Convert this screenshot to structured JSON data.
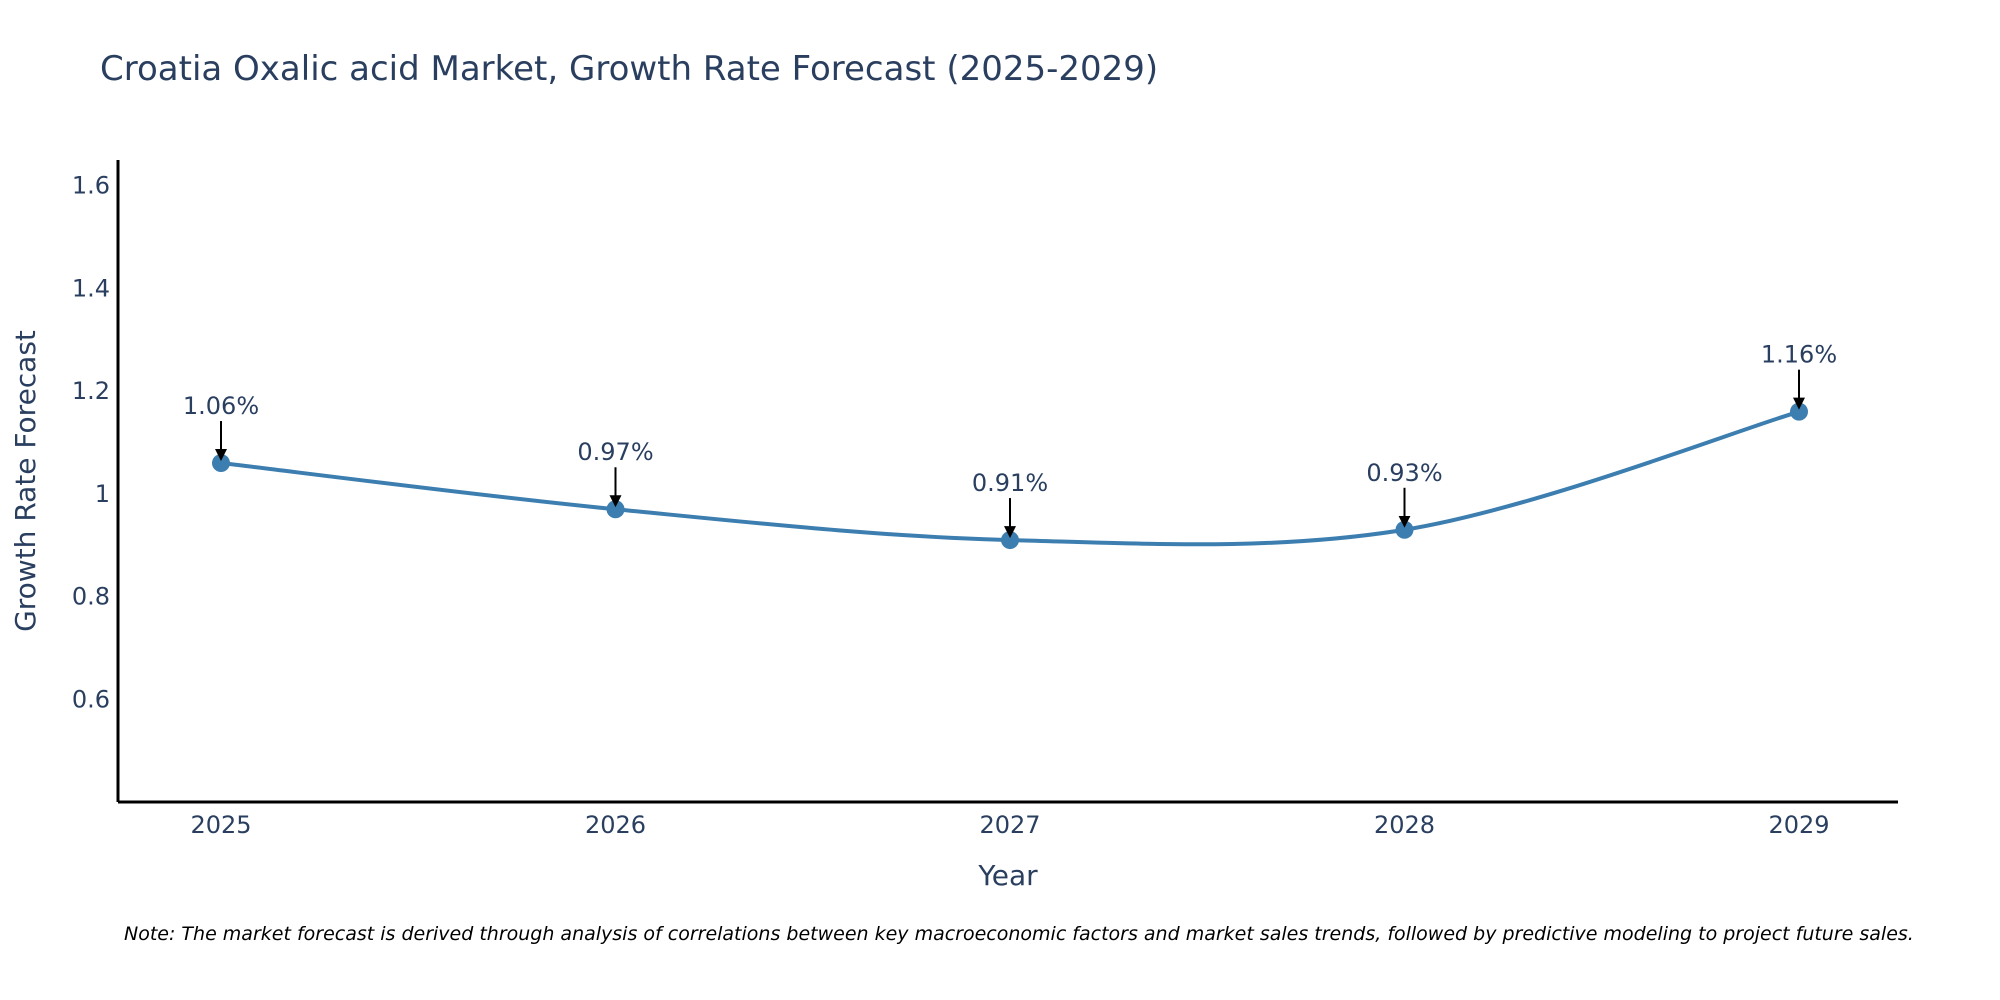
{
  "chart_data": {
    "type": "line",
    "title": "Croatia Oxalic acid Market, Growth Rate Forecast (2025-2029)",
    "xlabel": "Year",
    "ylabel": "Growth Rate Forecast",
    "categories": [
      "2025",
      "2026",
      "2027",
      "2028",
      "2029"
    ],
    "series": [
      {
        "name": "Growth Rate Forecast",
        "values": [
          1.06,
          0.97,
          0.91,
          0.93,
          1.16
        ],
        "data_labels": [
          "1.06%",
          "0.97%",
          "0.91%",
          "0.93%",
          "1.16%"
        ],
        "color": "#3d7eb0",
        "smooth": true,
        "markers": true
      }
    ],
    "ylim": [
      0.4,
      1.65
    ],
    "yticks": [
      0.6,
      0.8,
      1.0,
      1.2,
      1.4,
      1.6
    ],
    "ytick_labels": [
      "0.6",
      "0.8",
      "1",
      "1.2",
      "1.4",
      "1.6"
    ],
    "grid": false,
    "legend": "none",
    "annotation_arrows": true,
    "note": "Note: The market forecast is derived through analysis of correlations between key macroeconomic factors and market sales trends, followed by predictive modeling to project future sales."
  },
  "colors": {
    "line": "#3d7eb0",
    "marker": "#3d7eb0",
    "axis": "#000000",
    "text": "#2a3f5f",
    "arrow": "#000000"
  }
}
